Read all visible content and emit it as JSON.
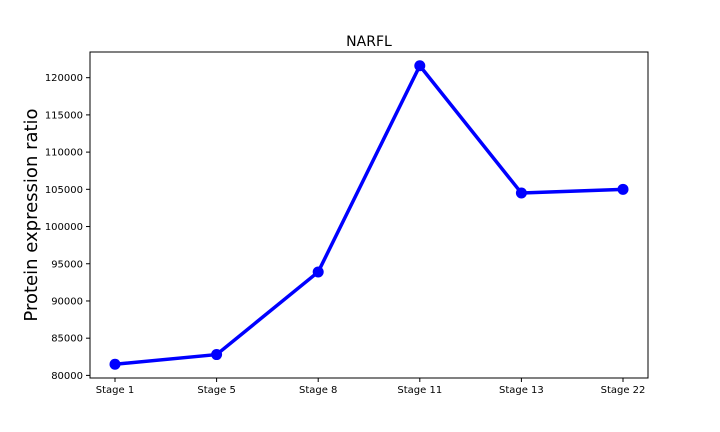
{
  "chart_data": {
    "type": "line",
    "title": "NARFL",
    "xlabel": "",
    "ylabel": "Protein expression ratio",
    "categories": [
      "Stage 1",
      "Stage 5",
      "Stage 8",
      "Stage 11",
      "Stage 13",
      "Stage 22"
    ],
    "series": [
      {
        "values": [
          81500,
          82800,
          93900,
          121600,
          104500,
          105000
        ]
      }
    ],
    "yticks": [
      80000,
      85000,
      90000,
      95000,
      100000,
      105000,
      110000,
      115000,
      120000
    ],
    "ylim": [
      79650,
      123450
    ],
    "grid": false,
    "colors": {
      "line": "#0000ff",
      "marker": "#0000ff",
      "frame": "#000000"
    }
  }
}
